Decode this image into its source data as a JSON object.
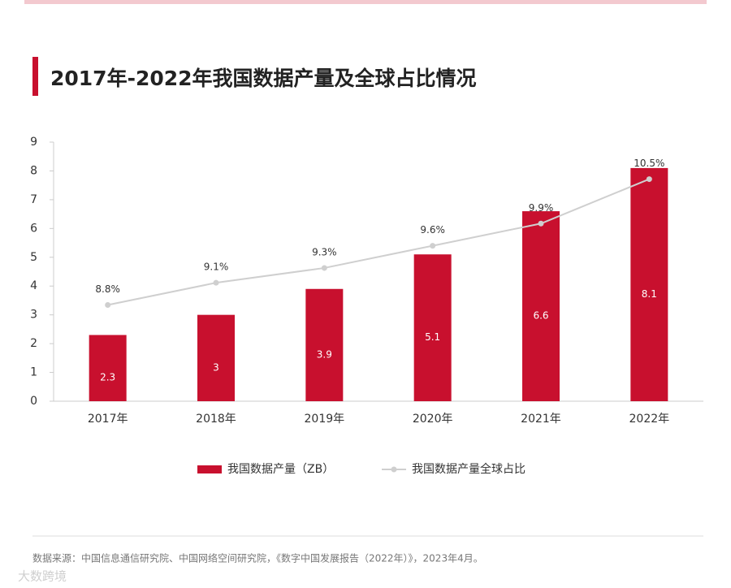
{
  "chart_data": {
    "type": "bar",
    "title": "2017年-2022年我国数据产量及全球占比情况",
    "categories": [
      "2017年",
      "2018年",
      "2019年",
      "2020年",
      "2021年",
      "2022年"
    ],
    "series": [
      {
        "name": "我国数据产量（ZB）",
        "type": "bar",
        "color": "#c8102e",
        "values": [
          2.3,
          3,
          3.9,
          5.1,
          6.6,
          8.1
        ]
      },
      {
        "name": "我国数据产量全球占比",
        "type": "line",
        "axis": "y2",
        "color": "#cfcfcf",
        "values": [
          8.8,
          9.1,
          9.3,
          9.6,
          9.9,
          10.5
        ],
        "value_labels": [
          "8.8%",
          "9.1%",
          "9.3%",
          "9.6%",
          "9.9%",
          "10.5%"
        ]
      }
    ],
    "ylim": [
      0,
      9
    ],
    "yticks": [
      0,
      1,
      2,
      3,
      4,
      5,
      6,
      7,
      8,
      9
    ],
    "y2lim": [
      7.5,
      11
    ],
    "grid": false,
    "legend": "bottom"
  },
  "source": "数据来源：中国信息通信研究院、中国网络空间研究院，《数字中国发展报告（2022年）》，2023年4月。",
  "watermark": "大数跨境"
}
